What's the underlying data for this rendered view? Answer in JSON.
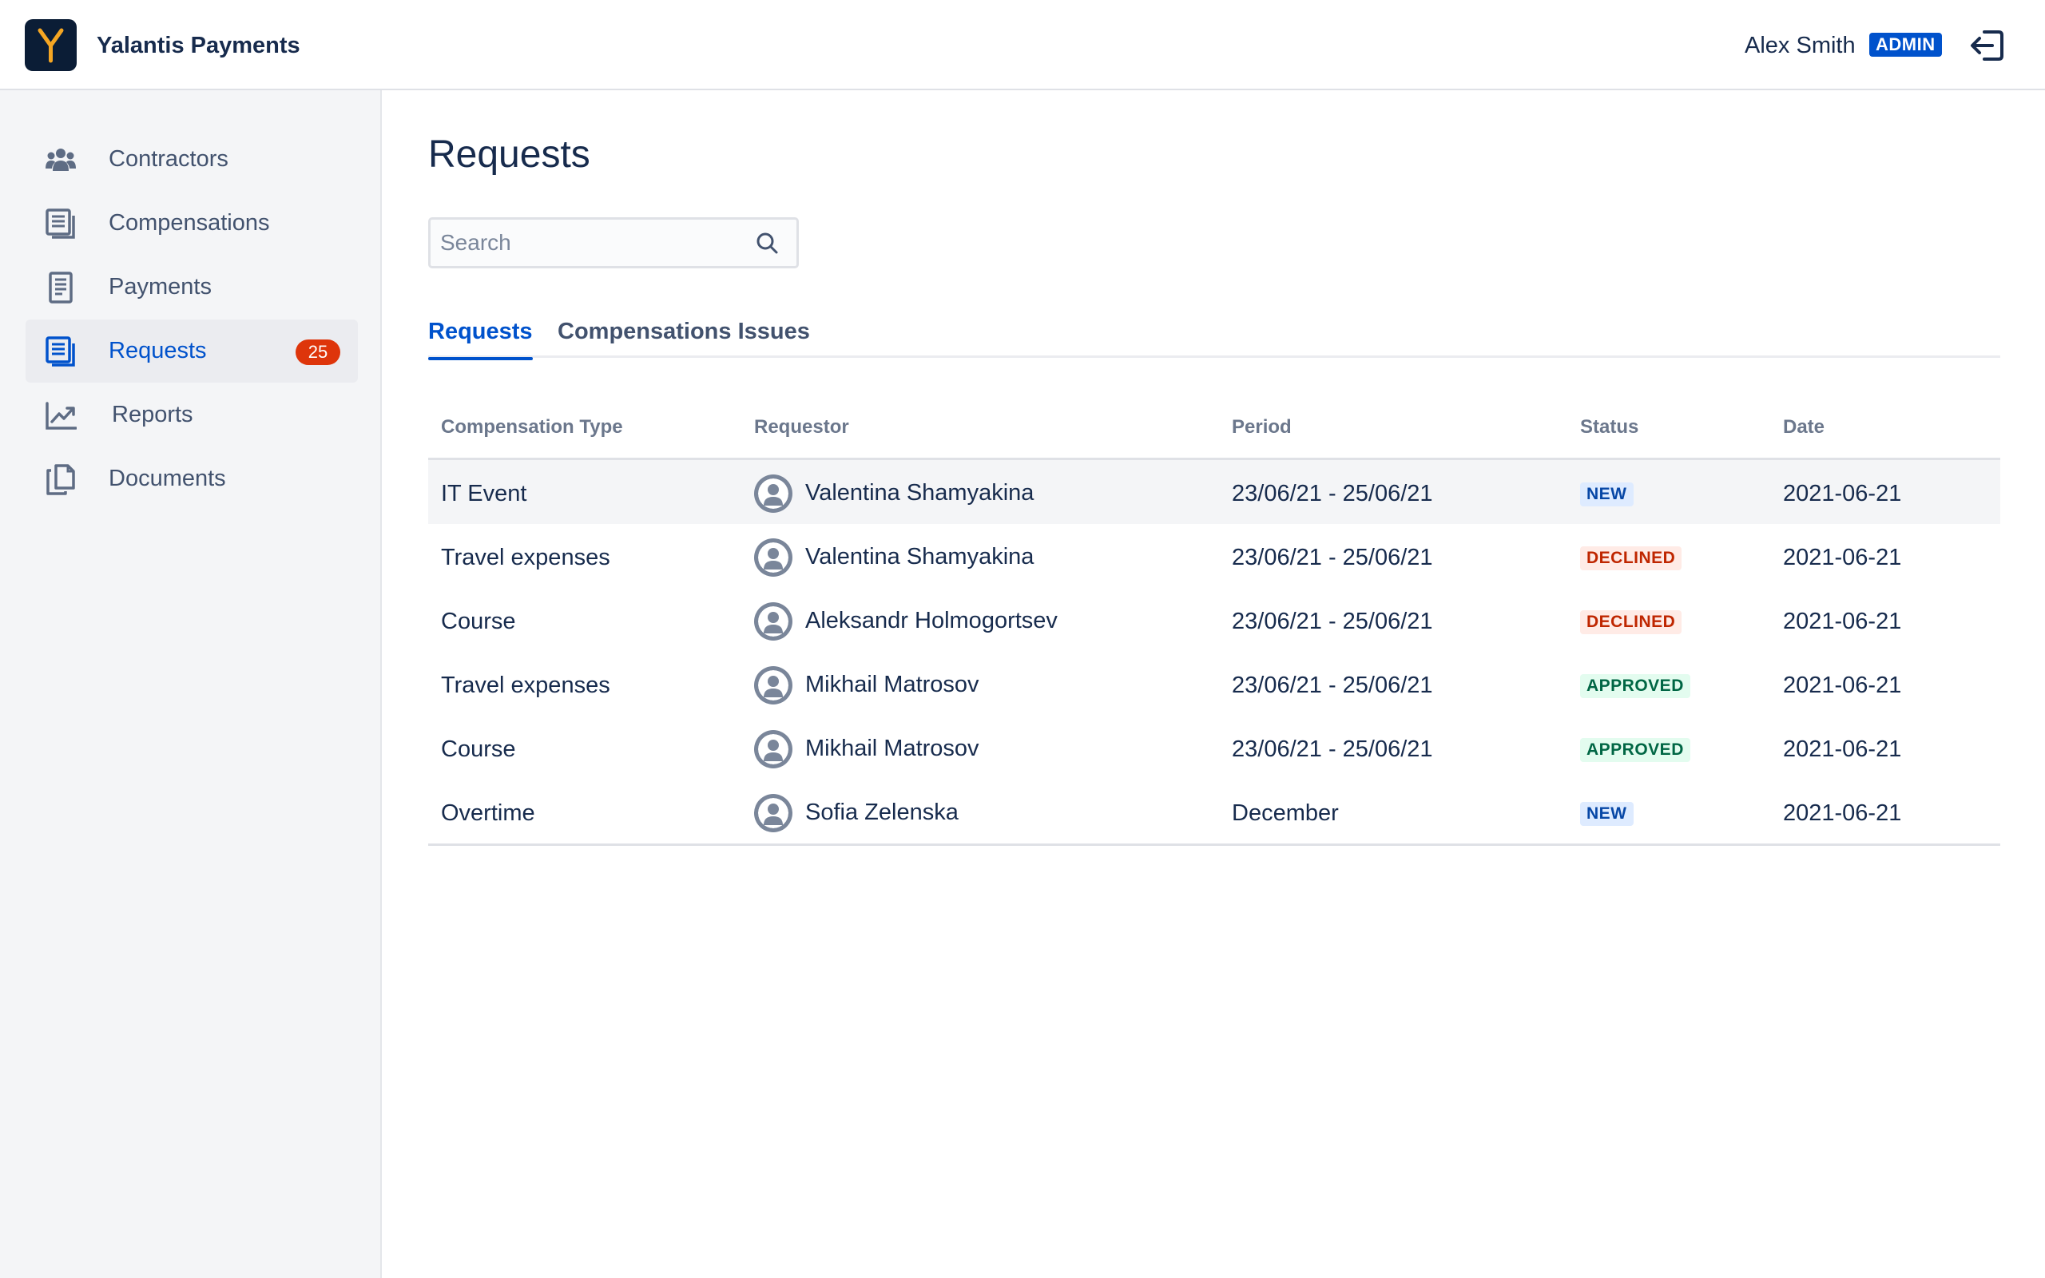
{
  "app": {
    "name": "Yalantis Payments",
    "logo_letter": "Y",
    "logo_bg": "#0B1D36",
    "logo_accent": "#F5A623"
  },
  "user": {
    "name": "Alex Smith",
    "role": "ADMIN"
  },
  "sidebar": {
    "items": [
      {
        "label": "Contractors",
        "icon": "users-icon",
        "active": false
      },
      {
        "label": "Compensations",
        "icon": "document-list-icon",
        "active": false
      },
      {
        "label": "Payments",
        "icon": "receipt-icon",
        "active": false
      },
      {
        "label": "Requests",
        "icon": "document-list-icon",
        "active": true,
        "badge": "25"
      },
      {
        "label": "Reports",
        "icon": "trend-chart-icon",
        "active": false
      },
      {
        "label": "Documents",
        "icon": "copy-documents-icon",
        "active": false
      }
    ]
  },
  "main": {
    "title": "Requests",
    "search": {
      "placeholder": "Search",
      "value": ""
    },
    "tabs": [
      {
        "label": "Requests",
        "active": true
      },
      {
        "label": "Compensations Issues",
        "active": false
      }
    ],
    "table": {
      "columns": [
        "Compensation Type",
        "Requestor",
        "Period",
        "Status",
        "Date"
      ],
      "rows": [
        {
          "type": "IT Event",
          "requestor": "Valentina Shamyakina",
          "period": "23/06/21 - 25/06/21",
          "status": "NEW",
          "date": "2021-06-21"
        },
        {
          "type": "Travel expenses",
          "requestor": "Valentina Shamyakina",
          "period": "23/06/21 - 25/06/21",
          "status": "DECLINED",
          "date": "2021-06-21"
        },
        {
          "type": "Course",
          "requestor": "Aleksandr Holmogortsev",
          "period": "23/06/21 - 25/06/21",
          "status": "DECLINED",
          "date": "2021-06-21"
        },
        {
          "type": "Travel expenses",
          "requestor": "Mikhail Matrosov",
          "period": "23/06/21 - 25/06/21",
          "status": "APPROVED",
          "date": "2021-06-21"
        },
        {
          "type": "Course",
          "requestor": "Mikhail Matrosov",
          "period": "23/06/21 - 25/06/21",
          "status": "APPROVED",
          "date": "2021-06-21"
        },
        {
          "type": "Overtime",
          "requestor": "Sofia Zelenska",
          "period": "December",
          "status": "NEW",
          "date": "2021-06-21"
        }
      ]
    }
  },
  "colors": {
    "primary": "#0052CC",
    "text": "#172B4D",
    "sidebar_bg": "#F4F5F7",
    "badge_red": "#DE350B",
    "status_new": "#0747A6",
    "status_declined": "#BF2600",
    "status_approved": "#006644"
  }
}
